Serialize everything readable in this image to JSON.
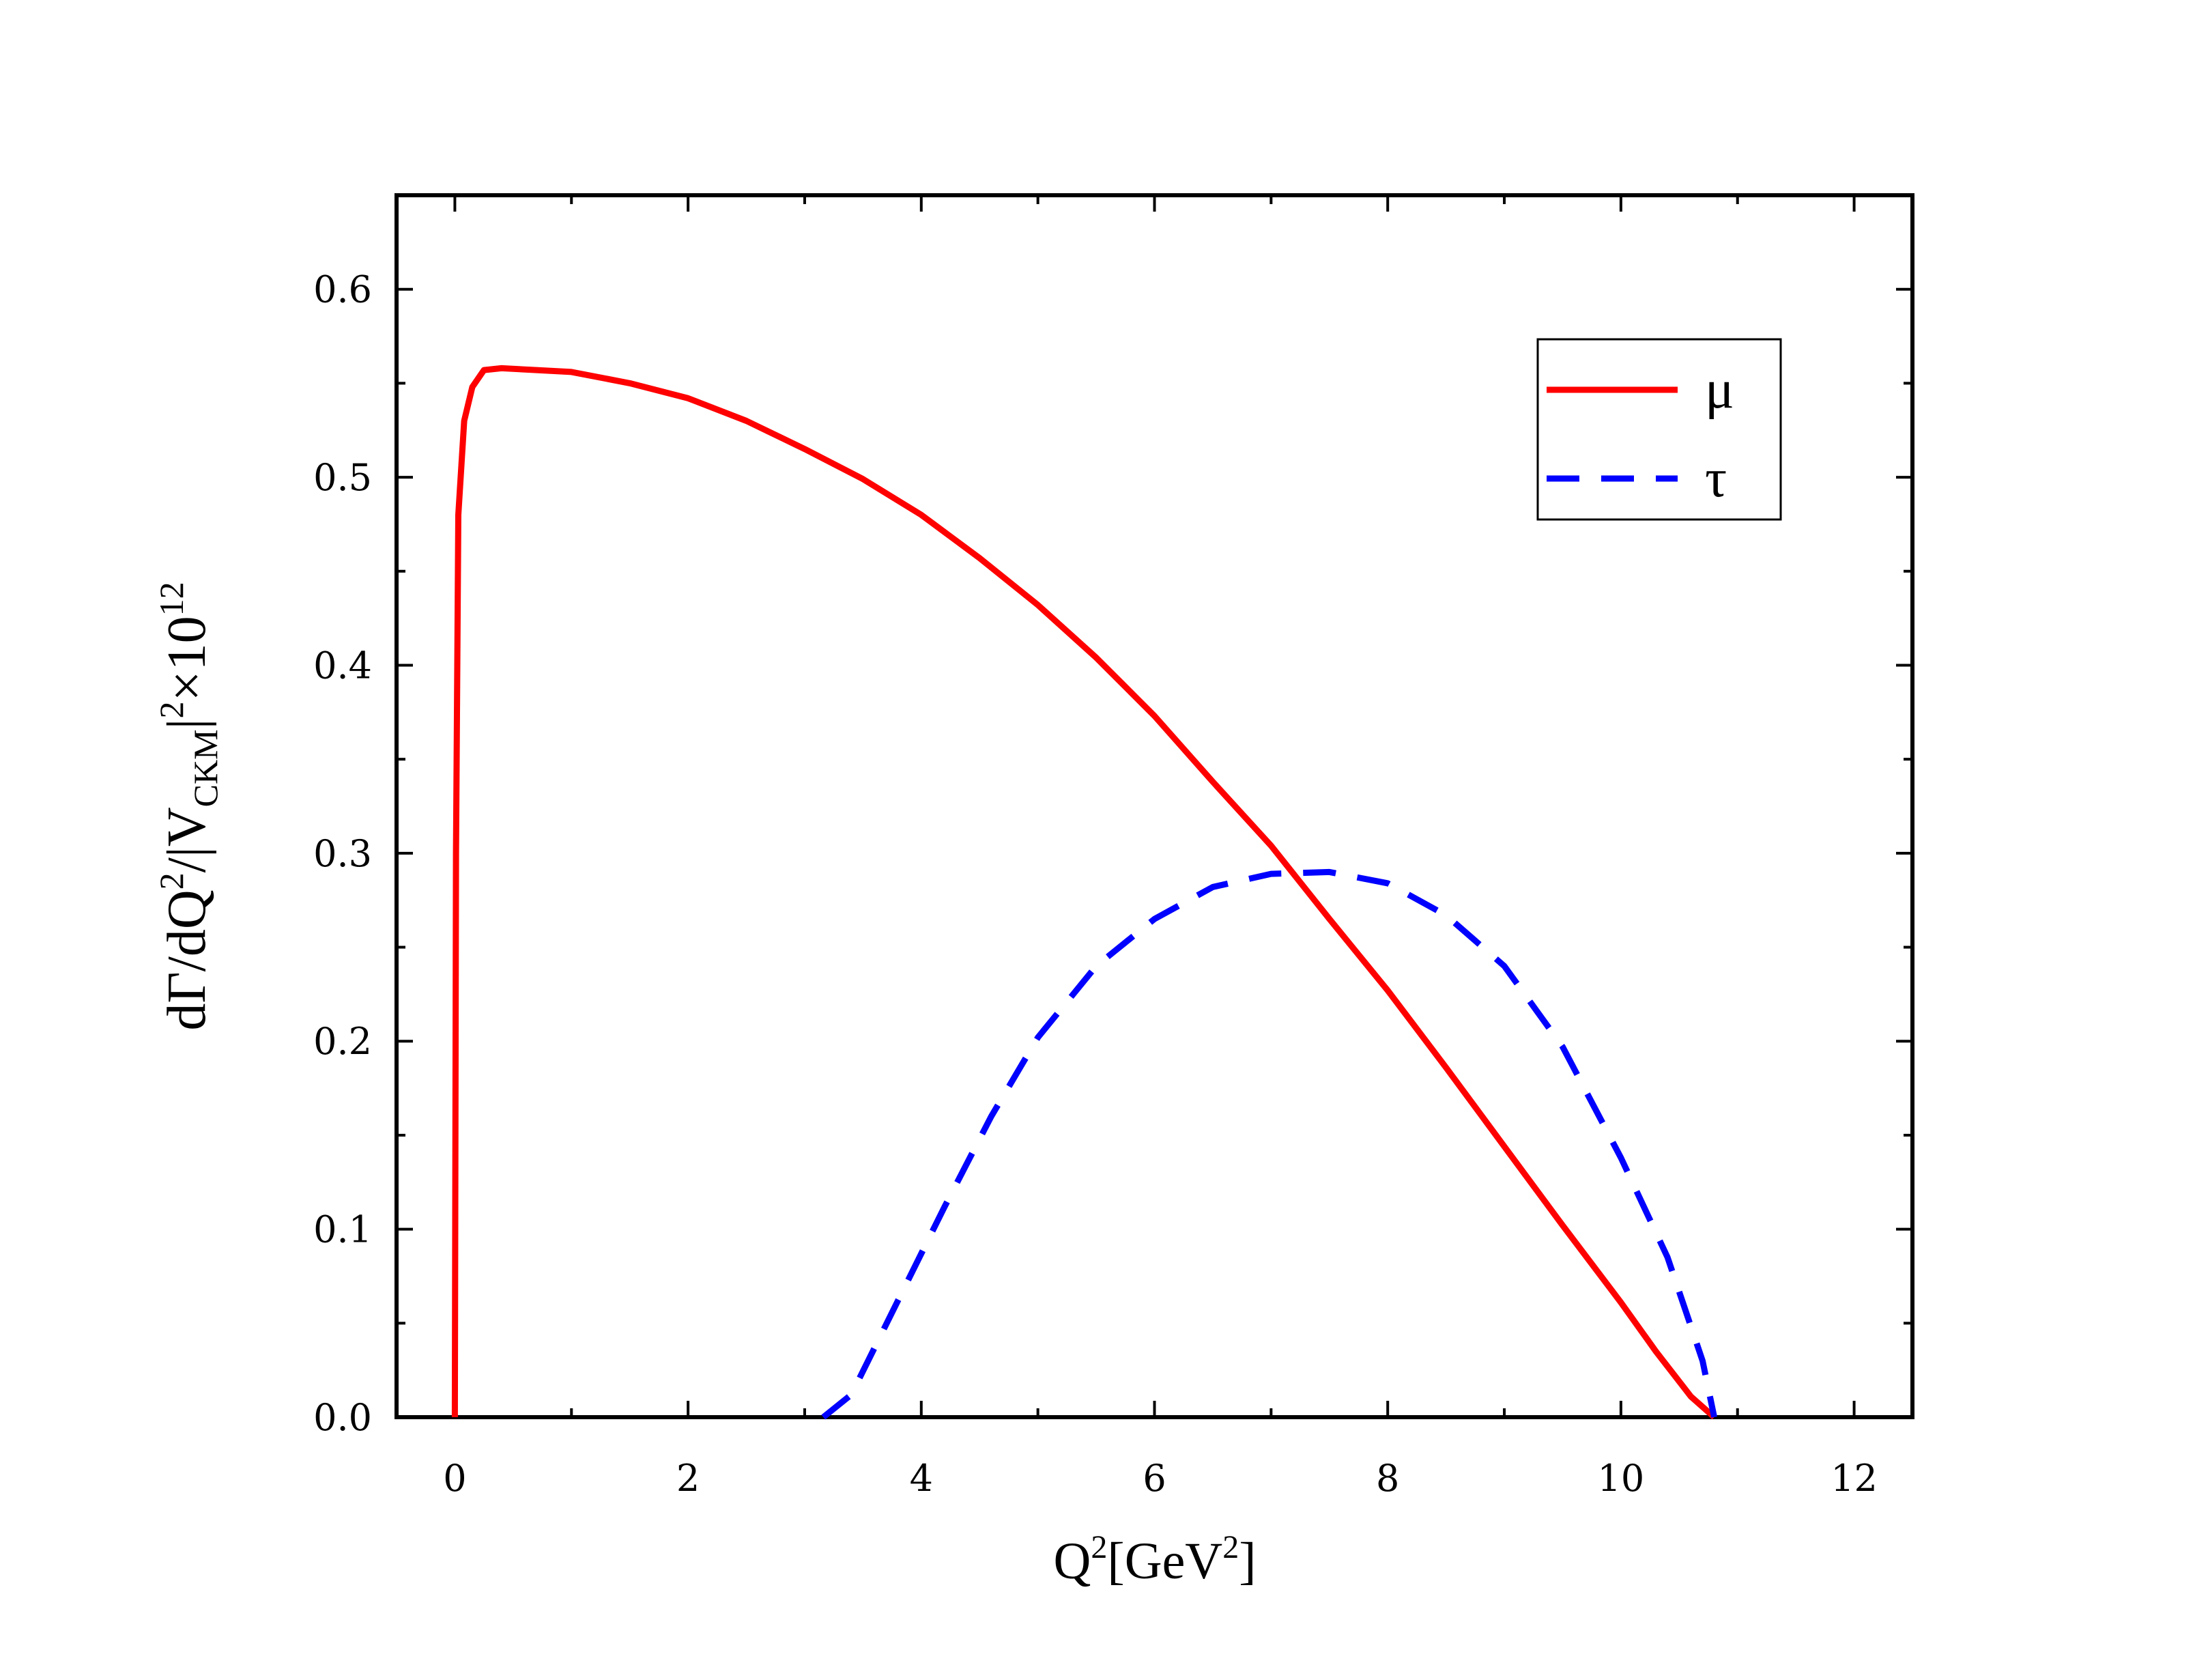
{
  "chart_data": {
    "type": "line",
    "xlabel": {
      "base": "Q",
      "sup": "2",
      "bracket_open": "[",
      "unit": "GeV",
      "unit_sup": "2",
      "bracket_close": "]"
    },
    "ylabel": {
      "p1": "dΓ/dQ",
      "sup1": "2",
      "p2": "/|V",
      "sub": "CKM",
      "p3": "|",
      "sup2": "2",
      "p4": "×10",
      "sup3": "12"
    },
    "xlim": [
      -0.5,
      12.5
    ],
    "ylim": [
      0.0,
      0.65
    ],
    "x_ticks": [
      "0",
      "2",
      "4",
      "6",
      "8",
      "10",
      "12"
    ],
    "y_ticks": [
      "0.0",
      "0.1",
      "0.2",
      "0.3",
      "0.4",
      "0.5",
      "0.6"
    ],
    "grid": false,
    "legend_position": "top-right",
    "series": [
      {
        "name": "μ",
        "color": "#ff0000",
        "style": "solid",
        "points": [
          [
            0.0,
            0.0
          ],
          [
            0.01,
            0.3
          ],
          [
            0.03,
            0.48
          ],
          [
            0.08,
            0.53
          ],
          [
            0.15,
            0.548
          ],
          [
            0.25,
            0.557
          ],
          [
            0.4,
            0.558
          ],
          [
            0.7,
            0.557
          ],
          [
            1.0,
            0.556
          ],
          [
            1.5,
            0.55
          ],
          [
            2.0,
            0.542
          ],
          [
            2.5,
            0.53
          ],
          [
            3.0,
            0.515
          ],
          [
            3.5,
            0.499
          ],
          [
            4.0,
            0.48
          ],
          [
            4.5,
            0.457
          ],
          [
            5.0,
            0.432
          ],
          [
            5.5,
            0.404
          ],
          [
            6.0,
            0.373
          ],
          [
            6.5,
            0.338
          ],
          [
            7.0,
            0.304
          ],
          [
            7.5,
            0.265
          ],
          [
            8.0,
            0.227
          ],
          [
            8.5,
            0.186
          ],
          [
            9.0,
            0.144
          ],
          [
            9.5,
            0.102
          ],
          [
            10.0,
            0.061
          ],
          [
            10.3,
            0.035
          ],
          [
            10.6,
            0.011
          ],
          [
            10.8,
            0.0
          ]
        ]
      },
      {
        "name": "τ",
        "color": "#0000ff",
        "style": "dashed",
        "points": [
          [
            3.16,
            0.0
          ],
          [
            3.4,
            0.012
          ],
          [
            3.8,
            0.062
          ],
          [
            4.2,
            0.112
          ],
          [
            4.6,
            0.16
          ],
          [
            5.0,
            0.202
          ],
          [
            5.5,
            0.24
          ],
          [
            6.0,
            0.265
          ],
          [
            6.5,
            0.282
          ],
          [
            7.0,
            0.289
          ],
          [
            7.5,
            0.29
          ],
          [
            8.0,
            0.284
          ],
          [
            8.5,
            0.267
          ],
          [
            9.0,
            0.24
          ],
          [
            9.5,
            0.197
          ],
          [
            10.0,
            0.138
          ],
          [
            10.4,
            0.085
          ],
          [
            10.7,
            0.03
          ],
          [
            10.8,
            0.0
          ]
        ]
      }
    ]
  }
}
